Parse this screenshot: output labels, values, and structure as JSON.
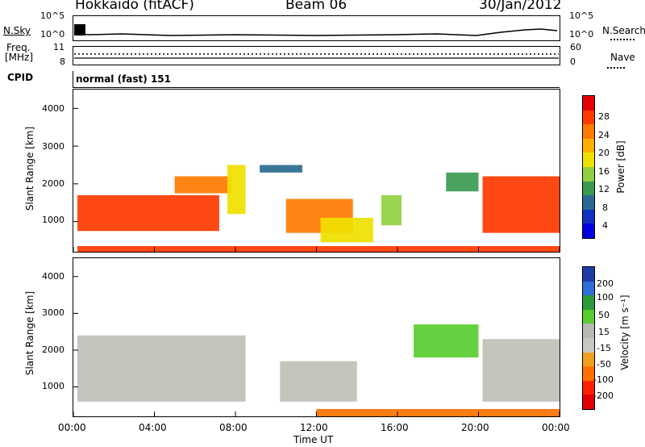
{
  "header": {
    "station": "Hokkaido (fitACF)",
    "beam": "Beam 06",
    "date": "30/Jan/2012"
  },
  "top_panels": {
    "nsky": {
      "label": "N.Sky",
      "ticks": [
        "10^5",
        "10^0"
      ]
    },
    "nsearch": {
      "label": "N.Search",
      "ticks": [
        "10^5",
        "10^0"
      ]
    },
    "freq": {
      "label_line1": "Freq.",
      "label_line2": "[MHz]",
      "ticks": [
        "11",
        "8"
      ]
    },
    "nave": {
      "label": "Nave",
      "ticks": [
        "60",
        "0"
      ]
    },
    "cpid": {
      "label": "CPID",
      "text": "normal (fast) 151"
    }
  },
  "x_axis": {
    "label": "Time UT",
    "ticks": [
      "00:00",
      "04:00",
      "08:00",
      "12:00",
      "16:00",
      "20:00",
      "00:00"
    ]
  },
  "power_panel": {
    "ylabel": "Slant Range [km]",
    "yticks": [
      "4000",
      "3000",
      "2000",
      "1000"
    ]
  },
  "velocity_panel": {
    "ylabel": "Slant Range [km]",
    "yticks": [
      "4000",
      "3000",
      "2000",
      "1000"
    ]
  },
  "power_colorbar": {
    "label": "Power [dB]",
    "ticks": [
      "28",
      "24",
      "20",
      "16",
      "12",
      "8",
      "4"
    ],
    "colors": [
      "#e60000",
      "#ff3a00",
      "#ff7a00",
      "#ffb000",
      "#f0e000",
      "#90d040",
      "#3a9a50",
      "#2a6a90",
      "#1030c0",
      "#0000e0"
    ]
  },
  "velocity_colorbar": {
    "label": "Velocity [m s⁻¹]",
    "ticks": [
      "200",
      "100",
      "50",
      "15",
      "-15",
      "-50",
      "-100",
      "-200"
    ],
    "colors": [
      "#1e3ca8",
      "#2e6ed8",
      "#2a9a3a",
      "#58cc30",
      "#b8b8b0",
      "#c8c8c0",
      "#f0a020",
      "#ff7000",
      "#ff2000",
      "#e00000"
    ]
  },
  "chart_data": {
    "type": "heatmap",
    "title": "Hokkaido (fitACF) Beam 06 30/Jan/2012",
    "xlabel": "Time UT",
    "ylabel": "Slant Range [km]",
    "x_range_hours": [
      0,
      24
    ],
    "y_range_km": [
      200,
      4500
    ],
    "panels": [
      "Power [dB]",
      "Velocity [m s^-1]"
    ],
    "power_regions": [
      {
        "t0": 0.2,
        "t1": 7.2,
        "r0": 750,
        "r1": 1700,
        "value_db": 28
      },
      {
        "t0": 5.0,
        "t1": 7.8,
        "r0": 1750,
        "r1": 2200,
        "value_db": 22
      },
      {
        "t0": 7.6,
        "t1": 8.5,
        "r0": 1200,
        "r1": 2500,
        "value_db": 16
      },
      {
        "t0": 9.2,
        "t1": 11.3,
        "r0": 2300,
        "r1": 2500,
        "value_db": 6
      },
      {
        "t0": 10.5,
        "t1": 13.8,
        "r0": 700,
        "r1": 1600,
        "value_db": 24
      },
      {
        "t0": 12.2,
        "t1": 14.8,
        "r0": 450,
        "r1": 1100,
        "value_db": 18
      },
      {
        "t0": 15.2,
        "t1": 16.2,
        "r0": 900,
        "r1": 1700,
        "value_db": 14
      },
      {
        "t0": 18.4,
        "t1": 20.0,
        "r0": 1800,
        "r1": 2300,
        "value_db": 10
      },
      {
        "t0": 20.2,
        "t1": 24.0,
        "r0": 700,
        "r1": 2200,
        "value_db": 28
      },
      {
        "t0": 0.2,
        "t1": 24.0,
        "r0": 200,
        "r1": 350,
        "value_db": 28
      }
    ],
    "velocity_regions": [
      {
        "t0": 0.2,
        "t1": 8.5,
        "r0": 600,
        "r1": 2400,
        "value_ms": 0
      },
      {
        "t0": 10.2,
        "t1": 14.0,
        "r0": 600,
        "r1": 1700,
        "value_ms": 0
      },
      {
        "t0": 16.8,
        "t1": 20.0,
        "r0": 1800,
        "r1": 2700,
        "value_ms": 40
      },
      {
        "t0": 20.2,
        "t1": 24.0,
        "r0": 600,
        "r1": 2300,
        "value_ms": 0
      },
      {
        "t0": 12.0,
        "t1": 24.0,
        "r0": 200,
        "r1": 400,
        "value_ms": -60
      }
    ]
  }
}
